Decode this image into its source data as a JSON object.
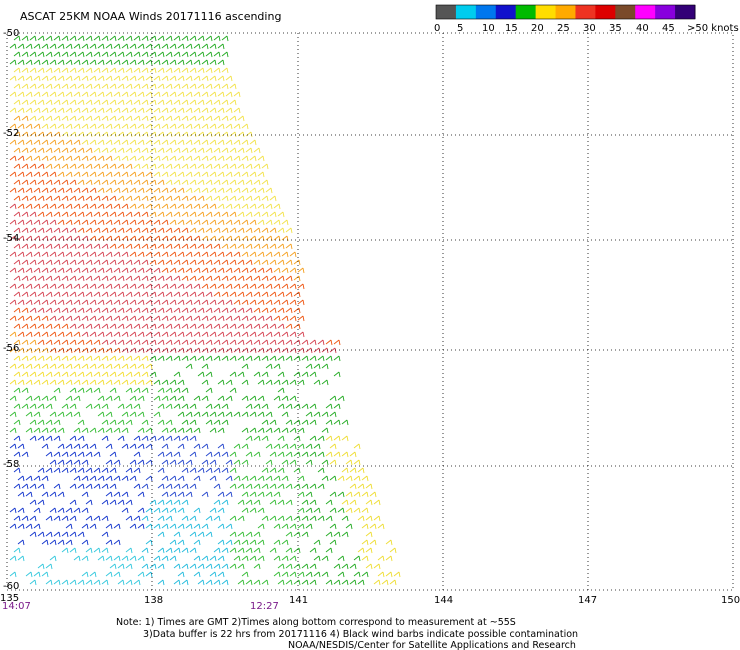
{
  "title": "ASCAT 25KM NOAA Winds 20171116 ascending",
  "colorbar": {
    "labels": [
      "0",
      "5",
      "10",
      "15",
      "20",
      "25",
      "30",
      "35",
      "40",
      "45",
      ">50 knots"
    ],
    "colors": [
      "#555555",
      "#00ccee",
      "#0077ee",
      "#1111cc",
      "#00bb00",
      "#ffdd00",
      "#ffaa00",
      "#ee3322",
      "#dd0000",
      "#7a4a2a",
      "#ff00ff",
      "#8800dd",
      "#330077"
    ]
  },
  "map": {
    "lon_labels": [
      "135",
      "138",
      "141",
      "144",
      "147",
      "150"
    ],
    "lat_labels": [
      "-50",
      "-52",
      "-54",
      "-56",
      "-58",
      "-60"
    ],
    "grid": "dotted"
  },
  "times": [
    "14:07",
    "12:27"
  ],
  "notes": [
    "Note: 1) Times are GMT 2)Times along bottom correspond to measurement at ~55S",
    "3)Data buffer is 22 hrs from 20171116 4) Black wind barbs indicate possible contamination",
    "NOAA/NESDIS/Center for Satellite Applications and Research"
  ]
}
